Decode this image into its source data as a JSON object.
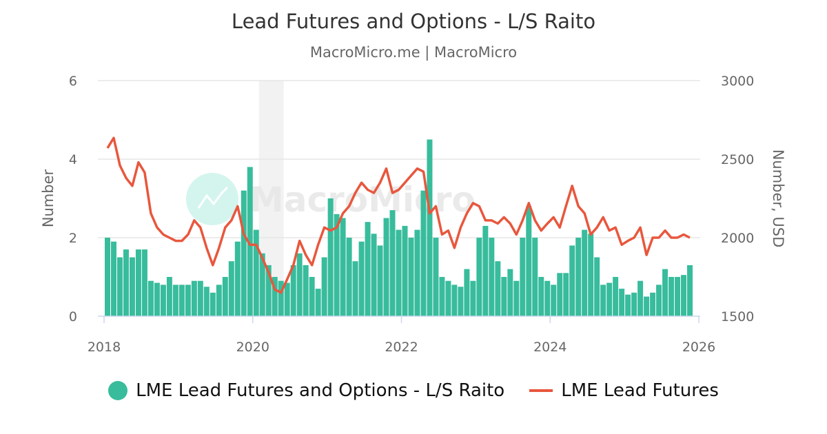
{
  "title": "Lead Futures and Options - L/S Raito",
  "subtitle": "MacroMicro.me | MacroMicro",
  "watermark": "MacroMicro",
  "colors": {
    "bars": "#38bc9c",
    "line": "#e8573d",
    "grid": "#e6e6e6",
    "shade": "#f2f2f2"
  },
  "chart_data": {
    "type": "bar+line",
    "title": "Lead Futures and Options - L/S Raito",
    "xlabel": "",
    "ylabel_left": "Number",
    "ylabel_right": "Number, USD",
    "xlim": [
      "2018-01",
      "2026-01"
    ],
    "ylim_left": [
      0,
      6
    ],
    "ylim_right": [
      1500,
      3000
    ],
    "x_ticks": [
      "2018",
      "2020",
      "2022",
      "2024",
      "2026"
    ],
    "y_ticks_left": [
      "0",
      "2",
      "4",
      "6"
    ],
    "y_ticks_right": [
      "1500",
      "2000",
      "2500",
      "3000"
    ],
    "grid": true,
    "legend": "bottom",
    "shaded_range": [
      "2020-02",
      "2020-06"
    ],
    "x": [
      "2018-01",
      "2018-02",
      "2018-03",
      "2018-04",
      "2018-05",
      "2018-06",
      "2018-07",
      "2018-08",
      "2018-09",
      "2018-10",
      "2018-11",
      "2018-12",
      "2019-01",
      "2019-02",
      "2019-03",
      "2019-04",
      "2019-05",
      "2019-06",
      "2019-07",
      "2019-08",
      "2019-09",
      "2019-10",
      "2019-11",
      "2019-12",
      "2020-01",
      "2020-02",
      "2020-03",
      "2020-04",
      "2020-05",
      "2020-06",
      "2020-07",
      "2020-08",
      "2020-09",
      "2020-10",
      "2020-11",
      "2020-12",
      "2021-01",
      "2021-02",
      "2021-03",
      "2021-04",
      "2021-05",
      "2021-06",
      "2021-07",
      "2021-08",
      "2021-09",
      "2021-10",
      "2021-11",
      "2021-12",
      "2022-01",
      "2022-02",
      "2022-03",
      "2022-04",
      "2022-05",
      "2022-06",
      "2022-07",
      "2022-08",
      "2022-09",
      "2022-10",
      "2022-11",
      "2022-12",
      "2023-01",
      "2023-02",
      "2023-03",
      "2023-04",
      "2023-05",
      "2023-06",
      "2023-07",
      "2023-08",
      "2023-09",
      "2023-10",
      "2023-11",
      "2023-12",
      "2024-01",
      "2024-02",
      "2024-03",
      "2024-04",
      "2024-05",
      "2024-06",
      "2024-07",
      "2024-08",
      "2024-09",
      "2024-10",
      "2024-11",
      "2024-12",
      "2025-01",
      "2025-02",
      "2025-03",
      "2025-04",
      "2025-05",
      "2025-06",
      "2025-07",
      "2025-08",
      "2025-09",
      "2025-10",
      "2025-11"
    ],
    "series": [
      {
        "name": "LME Lead Futures and Options - L/S Raito",
        "type": "bar",
        "axis": "left",
        "values": [
          2.0,
          1.9,
          1.5,
          1.7,
          1.5,
          1.7,
          1.7,
          0.9,
          0.85,
          0.8,
          1.0,
          0.8,
          0.8,
          0.8,
          0.9,
          0.9,
          0.75,
          0.6,
          0.8,
          1.0,
          1.4,
          1.9,
          3.2,
          3.8,
          2.2,
          1.6,
          1.3,
          1.0,
          0.9,
          0.85,
          1.3,
          1.6,
          1.3,
          1.0,
          0.7,
          1.5,
          3.0,
          2.6,
          2.5,
          2.0,
          1.4,
          1.9,
          2.4,
          2.1,
          1.8,
          2.5,
          2.7,
          2.2,
          2.3,
          2.0,
          2.2,
          3.2,
          4.5,
          2.0,
          1.0,
          0.9,
          0.8,
          0.75,
          1.2,
          0.9,
          2.0,
          2.3,
          2.0,
          1.4,
          1.0,
          1.2,
          0.9,
          2.0,
          2.8,
          2.0,
          1.0,
          0.9,
          0.8,
          1.1,
          1.1,
          1.8,
          2.0,
          2.2,
          2.1,
          1.5,
          0.8,
          0.85,
          1.0,
          0.7,
          0.55,
          0.6,
          0.9,
          0.5,
          0.6,
          0.8,
          1.2,
          1.0,
          1.0,
          1.05,
          1.3
        ]
      },
      {
        "name": "LME Lead Futures",
        "type": "line",
        "axis": "right",
        "values": [
          2570,
          2635,
          2460,
          2380,
          2330,
          2480,
          2415,
          2155,
          2065,
          2020,
          2000,
          1980,
          1980,
          2020,
          2110,
          2065,
          1935,
          1825,
          1935,
          2065,
          2110,
          2200,
          2020,
          1955,
          1955,
          1870,
          1780,
          1670,
          1650,
          1735,
          1825,
          1980,
          1890,
          1825,
          1955,
          2065,
          2045,
          2065,
          2155,
          2200,
          2285,
          2350,
          2305,
          2285,
          2350,
          2440,
          2285,
          2305,
          2350,
          2395,
          2440,
          2420,
          2155,
          2200,
          2020,
          2045,
          1935,
          2065,
          2155,
          2220,
          2200,
          2110,
          2110,
          2090,
          2130,
          2090,
          2020,
          2110,
          2220,
          2110,
          2045,
          2090,
          2130,
          2065,
          2200,
          2330,
          2200,
          2155,
          2020,
          2065,
          2130,
          2045,
          2065,
          1955,
          1980,
          2000,
          2065,
          1890,
          2000,
          2000,
          2045,
          2000,
          2000,
          2020,
          2000
        ]
      }
    ]
  },
  "legend": {
    "bar_label": "LME Lead Futures and Options - L/S Raito",
    "line_label": "LME Lead Futures"
  }
}
